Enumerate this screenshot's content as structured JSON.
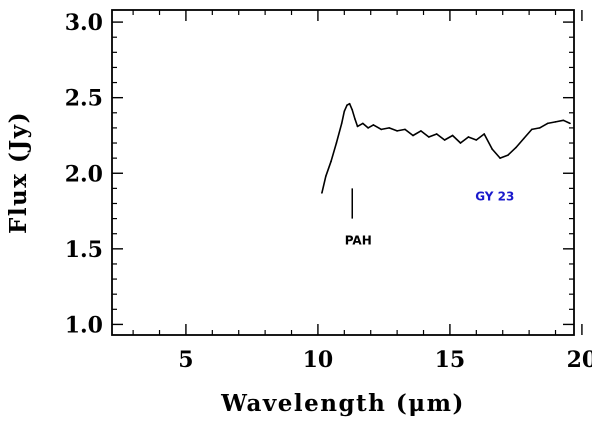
{
  "chart_data": {
    "type": "line",
    "title": "",
    "xlabel": "Wavelength (μm)",
    "ylabel": "Flux (Jy)",
    "xlim": [
      2.2,
      19.7
    ],
    "ylim": [
      0.93,
      3.08
    ],
    "xticks": [
      5,
      10,
      15,
      20
    ],
    "yticks": [
      1.0,
      1.5,
      2.0,
      2.5,
      3.0
    ],
    "xtick_labels": [
      "5",
      "10",
      "15",
      "20"
    ],
    "ytick_labels": [
      "1.0",
      "1.5",
      "2.0",
      "2.5",
      "3.0"
    ],
    "grid": false,
    "series": [
      {
        "color": "#000000",
        "x": [
          10.15,
          10.3,
          10.5,
          10.7,
          10.9,
          11.0,
          11.1,
          11.2,
          11.3,
          11.4,
          11.5,
          11.7,
          11.9,
          12.1,
          12.4,
          12.7,
          13.0,
          13.3,
          13.6,
          13.9,
          14.2,
          14.5,
          14.8,
          15.1,
          15.4,
          15.7,
          16.0,
          16.3,
          16.6,
          16.9,
          17.2,
          17.5,
          17.8,
          18.1,
          18.4,
          18.7,
          19.0,
          19.3,
          19.55
        ],
        "y": [
          1.87,
          1.98,
          2.08,
          2.2,
          2.33,
          2.41,
          2.45,
          2.46,
          2.42,
          2.36,
          2.31,
          2.33,
          2.3,
          2.32,
          2.29,
          2.3,
          2.28,
          2.29,
          2.25,
          2.28,
          2.24,
          2.26,
          2.22,
          2.25,
          2.2,
          2.24,
          2.22,
          2.26,
          2.16,
          2.1,
          2.12,
          2.17,
          2.23,
          2.29,
          2.3,
          2.33,
          2.34,
          2.35,
          2.33
        ]
      }
    ]
  },
  "annotations": {
    "pah_label": "PAH",
    "pah_x": 11.3,
    "pah_y_top": 1.9,
    "pah_y_bottom": 1.7,
    "pah_label_y": 1.53,
    "source_label": "GY 23",
    "source_label_x": 16.7,
    "source_label_y": 1.82,
    "source_color": "#1a1acc"
  }
}
